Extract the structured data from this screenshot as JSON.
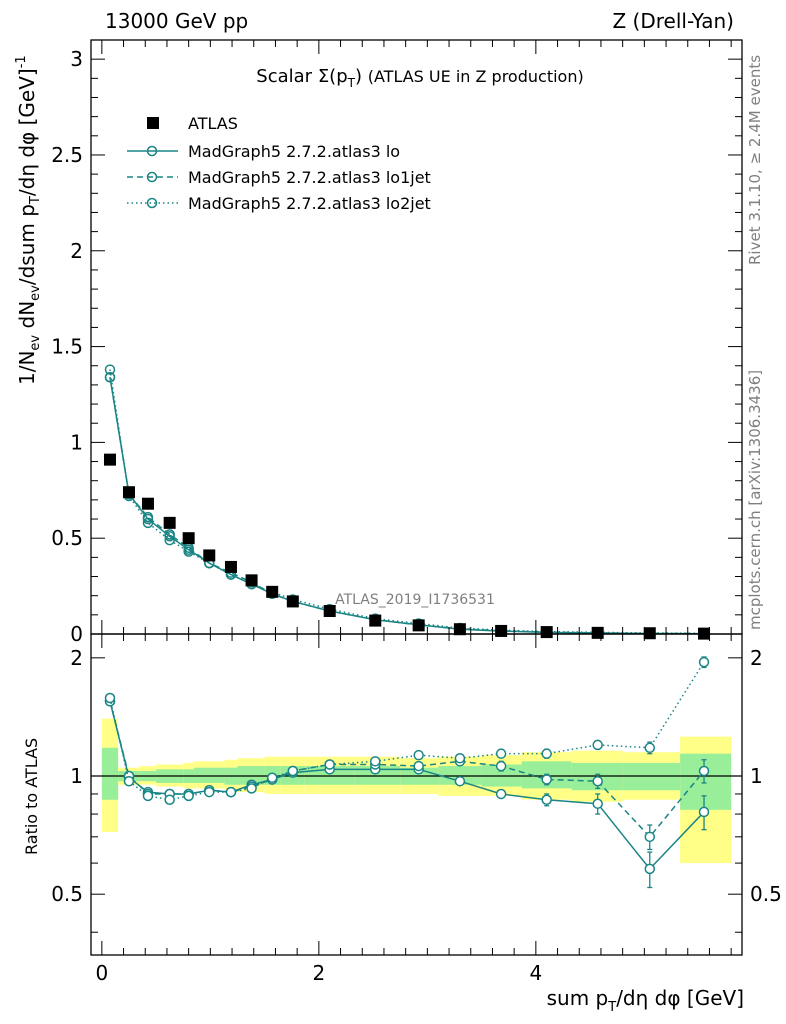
{
  "header": {
    "left": "13000 GeV pp",
    "right": "Z (Drell-Yan)"
  },
  "side_text": {
    "rivet": "Rivet 3.1.10, ≥ 2.4M events",
    "mcplots": "mcplots.cern.ch [arXiv:1306.3436]"
  },
  "watermark": "ATLAS_2019_I1736531",
  "colors": {
    "mc": "#1a8585",
    "data": "#000000",
    "band_green": "#99ee99",
    "band_yellow": "#ffff88"
  },
  "chart_data": [
    {
      "type": "scatter",
      "panel": "main",
      "title": "Scalar Σ(p_T) (ATLAS UE in Z production)",
      "xlabel": "sum p_T/dη dφ [GeV]",
      "ylabel": "1/N_ev dN_ev/dsum p_T/dη dφ [GeV]^-1",
      "xlim": [
        -0.1,
        5.9
      ],
      "ylim": [
        0,
        3.1
      ],
      "xticks": [
        "0",
        "2",
        "4"
      ],
      "yticks": [
        "0",
        "0.5",
        "1",
        "1.5",
        "2",
        "2.5",
        "3"
      ],
      "legend_position": "top-left",
      "x": [
        0.075,
        0.25,
        0.425,
        0.625,
        0.8,
        0.99,
        1.19,
        1.38,
        1.57,
        1.76,
        2.1,
        2.52,
        2.92,
        3.3,
        3.68,
        4.1,
        4.57,
        5.05,
        5.55
      ],
      "series": [
        {
          "name": "ATLAS",
          "style": "marker",
          "values": [
            0.91,
            0.74,
            0.68,
            0.58,
            0.5,
            0.41,
            0.35,
            0.28,
            0.22,
            0.17,
            0.12,
            0.07,
            0.045,
            0.025,
            0.016,
            0.01,
            0.006,
            0.004,
            0.002
          ]
        },
        {
          "name": "MadGraph5 2.7.2.atlas3 lo",
          "style": "solid",
          "values": [
            1.34,
            0.73,
            0.6,
            0.51,
            0.44,
            0.37,
            0.31,
            0.26,
            0.21,
            0.17,
            0.12,
            0.074,
            0.048,
            0.025,
            0.015,
            0.0087,
            0.0051,
            0.0023,
            0.0016
          ]
        },
        {
          "name": "MadGraph5 2.7.2.atlas3 lo1jet",
          "style": "dashed",
          "values": [
            1.34,
            0.73,
            0.61,
            0.52,
            0.45,
            0.37,
            0.32,
            0.27,
            0.21,
            0.17,
            0.12,
            0.075,
            0.047,
            0.027,
            0.017,
            0.0098,
            0.0058,
            0.0028,
            0.0021
          ]
        },
        {
          "name": "MadGraph5 2.7.2.atlas3 lo2jet",
          "style": "dotted",
          "values": [
            1.38,
            0.72,
            0.58,
            0.49,
            0.43,
            0.37,
            0.31,
            0.26,
            0.22,
            0.18,
            0.13,
            0.08,
            0.055,
            0.031,
            0.02,
            0.0127,
            0.0086,
            0.0055,
            0.0039
          ]
        }
      ]
    },
    {
      "type": "scatter",
      "panel": "ratio",
      "ylabel": "Ratio to ATLAS",
      "xlim": [
        -0.1,
        5.9
      ],
      "ylim": [
        0.35,
        2.3
      ],
      "yticks": [
        "0.5",
        "1",
        "2"
      ],
      "x": [
        0.075,
        0.25,
        0.425,
        0.625,
        0.8,
        0.99,
        1.19,
        1.38,
        1.57,
        1.76,
        2.1,
        2.52,
        2.92,
        3.3,
        3.68,
        4.1,
        4.57,
        5.05,
        5.55
      ],
      "bins": [
        {
          "lo": 0.0,
          "hi": 0.15,
          "green": [
            0.87,
            1.18
          ],
          "yellow": [
            0.72,
            1.4
          ]
        },
        {
          "lo": 0.15,
          "hi": 0.35,
          "green": [
            0.97,
            1.03
          ],
          "yellow": [
            0.95,
            1.05
          ]
        },
        {
          "lo": 0.35,
          "hi": 0.5,
          "green": [
            0.97,
            1.03
          ],
          "yellow": [
            0.95,
            1.06
          ]
        },
        {
          "lo": 0.5,
          "hi": 0.75,
          "green": [
            0.96,
            1.04
          ],
          "yellow": [
            0.94,
            1.07
          ]
        },
        {
          "lo": 0.75,
          "hi": 0.85,
          "green": [
            0.96,
            1.04
          ],
          "yellow": [
            0.93,
            1.08
          ]
        },
        {
          "lo": 0.85,
          "hi": 1.13,
          "green": [
            0.96,
            1.05
          ],
          "yellow": [
            0.93,
            1.09
          ]
        },
        {
          "lo": 1.13,
          "hi": 1.25,
          "green": [
            0.95,
            1.05
          ],
          "yellow": [
            0.92,
            1.1
          ]
        },
        {
          "lo": 1.25,
          "hi": 1.5,
          "green": [
            0.95,
            1.06
          ],
          "yellow": [
            0.91,
            1.11
          ]
        },
        {
          "lo": 1.5,
          "hi": 1.65,
          "green": [
            0.95,
            1.06
          ],
          "yellow": [
            0.9,
            1.12
          ]
        },
        {
          "lo": 1.65,
          "hi": 1.87,
          "green": [
            0.95,
            1.06
          ],
          "yellow": [
            0.9,
            1.12
          ]
        },
        {
          "lo": 1.87,
          "hi": 2.33,
          "green": [
            0.95,
            1.06
          ],
          "yellow": [
            0.9,
            1.12
          ]
        },
        {
          "lo": 2.33,
          "hi": 2.75,
          "green": [
            0.95,
            1.06
          ],
          "yellow": [
            0.9,
            1.12
          ]
        },
        {
          "lo": 2.75,
          "hi": 3.1,
          "green": [
            0.95,
            1.05
          ],
          "yellow": [
            0.9,
            1.11
          ]
        },
        {
          "lo": 3.1,
          "hi": 3.5,
          "green": [
            0.95,
            1.06
          ],
          "yellow": [
            0.89,
            1.12
          ]
        },
        {
          "lo": 3.5,
          "hi": 3.87,
          "green": [
            0.94,
            1.07
          ],
          "yellow": [
            0.89,
            1.13
          ]
        },
        {
          "lo": 3.87,
          "hi": 4.33,
          "green": [
            0.93,
            1.09
          ],
          "yellow": [
            0.87,
            1.15
          ]
        },
        {
          "lo": 4.33,
          "hi": 4.8,
          "green": [
            0.92,
            1.08
          ],
          "yellow": [
            0.86,
            1.16
          ]
        },
        {
          "lo": 4.8,
          "hi": 5.33,
          "green": [
            0.92,
            1.08
          ],
          "yellow": [
            0.87,
            1.15
          ]
        },
        {
          "lo": 5.33,
          "hi": 5.8,
          "green": [
            0.82,
            1.14
          ],
          "yellow": [
            0.6,
            1.26
          ]
        }
      ],
      "series": [
        {
          "name": "MadGraph5 2.7.2.atlas3 lo",
          "style": "solid",
          "values": [
            1.55,
            0.99,
            0.91,
            0.9,
            0.9,
            0.92,
            0.91,
            0.95,
            0.98,
            1.02,
            1.04,
            1.04,
            1.04,
            0.97,
            0.9,
            0.87,
            0.85,
            0.58,
            0.81
          ]
        },
        {
          "name": "MadGraph5 2.7.2.atlas3 lo1jet",
          "style": "dashed",
          "values": [
            1.55,
            1.0,
            0.9,
            0.9,
            0.9,
            0.92,
            0.91,
            0.94,
            0.98,
            1.03,
            1.07,
            1.07,
            1.06,
            1.09,
            1.06,
            0.98,
            0.97,
            0.7,
            1.03
          ]
        },
        {
          "name": "MadGraph5 2.7.2.atlas3 lo2jet",
          "style": "dotted",
          "values": [
            1.58,
            0.97,
            0.89,
            0.87,
            0.89,
            0.91,
            0.91,
            0.93,
            0.99,
            1.03,
            1.07,
            1.09,
            1.13,
            1.11,
            1.14,
            1.14,
            1.2,
            1.18,
            1.95
          ]
        }
      ],
      "errors": {
        "lo": [
          0.02,
          0.02,
          0.02,
          0.02,
          0.02,
          0.02,
          0.02,
          0.02,
          0.02,
          0.02,
          0.02,
          0.02,
          0.02,
          0.02,
          0.02,
          0.03,
          0.05,
          0.06,
          0.08
        ],
        "lo1jet": [
          0.02,
          0.02,
          0.02,
          0.02,
          0.02,
          0.02,
          0.02,
          0.02,
          0.02,
          0.02,
          0.02,
          0.02,
          0.02,
          0.02,
          0.03,
          0.03,
          0.04,
          0.05,
          0.07
        ],
        "lo2jet": [
          0.02,
          0.02,
          0.02,
          0.02,
          0.02,
          0.02,
          0.02,
          0.02,
          0.02,
          0.02,
          0.02,
          0.02,
          0.02,
          0.02,
          0.02,
          0.03,
          0.03,
          0.04,
          0.06
        ]
      }
    }
  ]
}
